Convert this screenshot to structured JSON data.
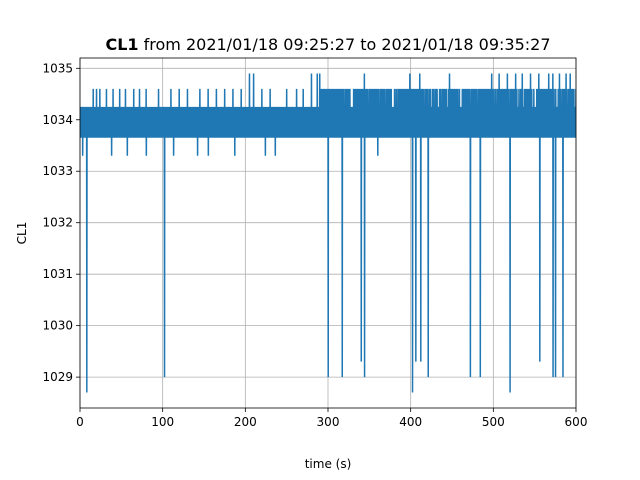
{
  "chart_data": {
    "type": "line",
    "title_bold": "CL1",
    "title_rest": " from 2021/01/18 09:25:27 to 2021/01/18 09:35:27",
    "xlabel": "time (s)",
    "ylabel": "CL1",
    "xlim": [
      0,
      600
    ],
    "ylim": [
      1028.4,
      1035.2
    ],
    "x_ticks": [
      0,
      100,
      200,
      300,
      400,
      500,
      600
    ],
    "y_ticks": [
      1029,
      1030,
      1031,
      1032,
      1033,
      1034,
      1035
    ],
    "grid": true,
    "series_color": "#1f77b4",
    "baseline": {
      "low": 1033.65,
      "high": 1034.25,
      "high_dense_after": 290,
      "high_dense_level": 1034.6
    },
    "spikes_up": [
      [
        16,
        1034.6
      ],
      [
        20,
        1034.6
      ],
      [
        24,
        1034.6
      ],
      [
        32,
        1034.6
      ],
      [
        40,
        1034.6
      ],
      [
        48,
        1034.6
      ],
      [
        55,
        1034.6
      ],
      [
        65,
        1034.6
      ],
      [
        72,
        1034.6
      ],
      [
        80,
        1034.6
      ],
      [
        95,
        1034.6
      ],
      [
        110,
        1034.6
      ],
      [
        120,
        1034.6
      ],
      [
        130,
        1034.6
      ],
      [
        145,
        1034.6
      ],
      [
        155,
        1034.6
      ],
      [
        165,
        1034.6
      ],
      [
        175,
        1034.6
      ],
      [
        185,
        1034.6
      ],
      [
        195,
        1034.6
      ],
      [
        205,
        1034.9
      ],
      [
        210,
        1034.9
      ],
      [
        220,
        1034.6
      ],
      [
        230,
        1034.6
      ],
      [
        250,
        1034.6
      ],
      [
        262,
        1034.6
      ],
      [
        270,
        1034.6
      ],
      [
        280,
        1034.9
      ],
      [
        287,
        1034.9
      ],
      [
        290,
        1034.9
      ],
      [
        344,
        1034.9
      ],
      [
        399,
        1034.9
      ],
      [
        411,
        1034.9
      ],
      [
        447,
        1034.9
      ],
      [
        498,
        1034.9
      ],
      [
        507,
        1034.9
      ],
      [
        517,
        1034.9
      ],
      [
        527,
        1034.9
      ],
      [
        535,
        1034.9
      ],
      [
        545,
        1034.9
      ],
      [
        555,
        1034.9
      ],
      [
        567,
        1034.9
      ],
      [
        572,
        1034.9
      ],
      [
        580,
        1034.9
      ],
      [
        588,
        1034.9
      ],
      [
        593,
        1034.9
      ]
    ],
    "spikes_down": [
      [
        3,
        1033.3
      ],
      [
        8,
        1028.7
      ],
      [
        38,
        1033.3
      ],
      [
        57,
        1033.3
      ],
      [
        80,
        1033.3
      ],
      [
        102,
        1029.0
      ],
      [
        113,
        1033.3
      ],
      [
        142,
        1033.3
      ],
      [
        155,
        1033.3
      ],
      [
        187,
        1033.3
      ],
      [
        224,
        1033.3
      ],
      [
        236,
        1033.3
      ],
      [
        300,
        1029.0
      ],
      [
        317,
        1029.0
      ],
      [
        340,
        1029.3
      ],
      [
        344,
        1029.0
      ],
      [
        360,
        1033.3
      ],
      [
        402,
        1028.7
      ],
      [
        406,
        1029.3
      ],
      [
        412,
        1029.3
      ],
      [
        421,
        1029.0
      ],
      [
        472,
        1029.0
      ],
      [
        484,
        1029.0
      ],
      [
        520,
        1028.7
      ],
      [
        556,
        1029.3
      ],
      [
        572,
        1029.0
      ],
      [
        575,
        1029.0
      ],
      [
        584,
        1029.0
      ]
    ]
  }
}
